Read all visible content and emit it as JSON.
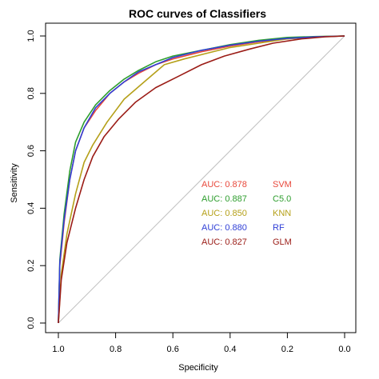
{
  "chart_data": {
    "type": "line",
    "title": "ROC curves of Classifiers",
    "xlabel": "Specificity",
    "ylabel": "Sensitivity",
    "xlim": [
      1.0,
      0.0
    ],
    "ylim": [
      0.0,
      1.0
    ],
    "x_reversed": true,
    "xticks": [
      "1.0",
      "0.8",
      "0.6",
      "0.4",
      "0.2",
      "0.0"
    ],
    "yticks": [
      "0.0",
      "0.2",
      "0.4",
      "0.6",
      "0.8",
      "1.0"
    ],
    "grid": false,
    "legend_position": "center-right",
    "reference_line": {
      "from": [
        1.0,
        0.0
      ],
      "to": [
        0.0,
        1.0
      ],
      "color": "#bfbfbf"
    },
    "series": [
      {
        "name": "SVM",
        "auc_label": "AUC: 0.878",
        "color": "#e8483b",
        "points": [
          [
            1.0,
            0.0
          ],
          [
            0.995,
            0.2
          ],
          [
            0.98,
            0.35
          ],
          [
            0.96,
            0.5
          ],
          [
            0.94,
            0.6
          ],
          [
            0.91,
            0.68
          ],
          [
            0.87,
            0.74
          ],
          [
            0.82,
            0.8
          ],
          [
            0.77,
            0.84
          ],
          [
            0.72,
            0.87
          ],
          [
            0.66,
            0.9
          ],
          [
            0.6,
            0.92
          ],
          [
            0.5,
            0.945
          ],
          [
            0.4,
            0.965
          ],
          [
            0.3,
            0.98
          ],
          [
            0.2,
            0.99
          ],
          [
            0.1,
            0.997
          ],
          [
            0.0,
            1.0
          ]
        ]
      },
      {
        "name": "C5.0",
        "auc_label": "AUC: 0.887",
        "color": "#2e9e2e",
        "points": [
          [
            1.0,
            0.0
          ],
          [
            0.995,
            0.22
          ],
          [
            0.98,
            0.38
          ],
          [
            0.96,
            0.53
          ],
          [
            0.94,
            0.63
          ],
          [
            0.91,
            0.7
          ],
          [
            0.87,
            0.76
          ],
          [
            0.82,
            0.81
          ],
          [
            0.77,
            0.85
          ],
          [
            0.72,
            0.88
          ],
          [
            0.66,
            0.91
          ],
          [
            0.6,
            0.93
          ],
          [
            0.5,
            0.95
          ],
          [
            0.4,
            0.97
          ],
          [
            0.3,
            0.985
          ],
          [
            0.2,
            0.995
          ],
          [
            0.1,
            0.998
          ],
          [
            0.0,
            1.0
          ]
        ]
      },
      {
        "name": "KNN",
        "auc_label": "AUC: 0.850",
        "color": "#b5a019",
        "points": [
          [
            1.0,
            0.0
          ],
          [
            0.99,
            0.17
          ],
          [
            0.97,
            0.31
          ],
          [
            0.94,
            0.45
          ],
          [
            0.91,
            0.56
          ],
          [
            0.88,
            0.62
          ],
          [
            0.83,
            0.7
          ],
          [
            0.77,
            0.78
          ],
          [
            0.7,
            0.84
          ],
          [
            0.63,
            0.9
          ],
          [
            0.56,
            0.92
          ],
          [
            0.48,
            0.94
          ],
          [
            0.4,
            0.96
          ],
          [
            0.3,
            0.975
          ],
          [
            0.2,
            0.99
          ],
          [
            0.1,
            0.997
          ],
          [
            0.0,
            1.0
          ]
        ]
      },
      {
        "name": "RF",
        "auc_label": "AUC: 0.880",
        "color": "#2f3fd6",
        "points": [
          [
            1.0,
            0.0
          ],
          [
            0.995,
            0.21
          ],
          [
            0.98,
            0.36
          ],
          [
            0.96,
            0.5
          ],
          [
            0.94,
            0.6
          ],
          [
            0.91,
            0.68
          ],
          [
            0.87,
            0.75
          ],
          [
            0.82,
            0.8
          ],
          [
            0.77,
            0.84
          ],
          [
            0.72,
            0.875
          ],
          [
            0.66,
            0.9
          ],
          [
            0.6,
            0.925
          ],
          [
            0.5,
            0.95
          ],
          [
            0.4,
            0.968
          ],
          [
            0.3,
            0.982
          ],
          [
            0.2,
            0.992
          ],
          [
            0.1,
            0.997
          ],
          [
            0.0,
            1.0
          ]
        ]
      },
      {
        "name": "GLM",
        "auc_label": "AUC: 0.827",
        "color": "#9b1c16",
        "points": [
          [
            1.0,
            0.0
          ],
          [
            0.99,
            0.15
          ],
          [
            0.97,
            0.28
          ],
          [
            0.94,
            0.4
          ],
          [
            0.91,
            0.5
          ],
          [
            0.88,
            0.58
          ],
          [
            0.84,
            0.65
          ],
          [
            0.79,
            0.71
          ],
          [
            0.73,
            0.77
          ],
          [
            0.66,
            0.82
          ],
          [
            0.58,
            0.86
          ],
          [
            0.5,
            0.9
          ],
          [
            0.42,
            0.93
          ],
          [
            0.33,
            0.955
          ],
          [
            0.25,
            0.975
          ],
          [
            0.15,
            0.99
          ],
          [
            0.07,
            0.997
          ],
          [
            0.0,
            1.0
          ]
        ]
      }
    ]
  }
}
